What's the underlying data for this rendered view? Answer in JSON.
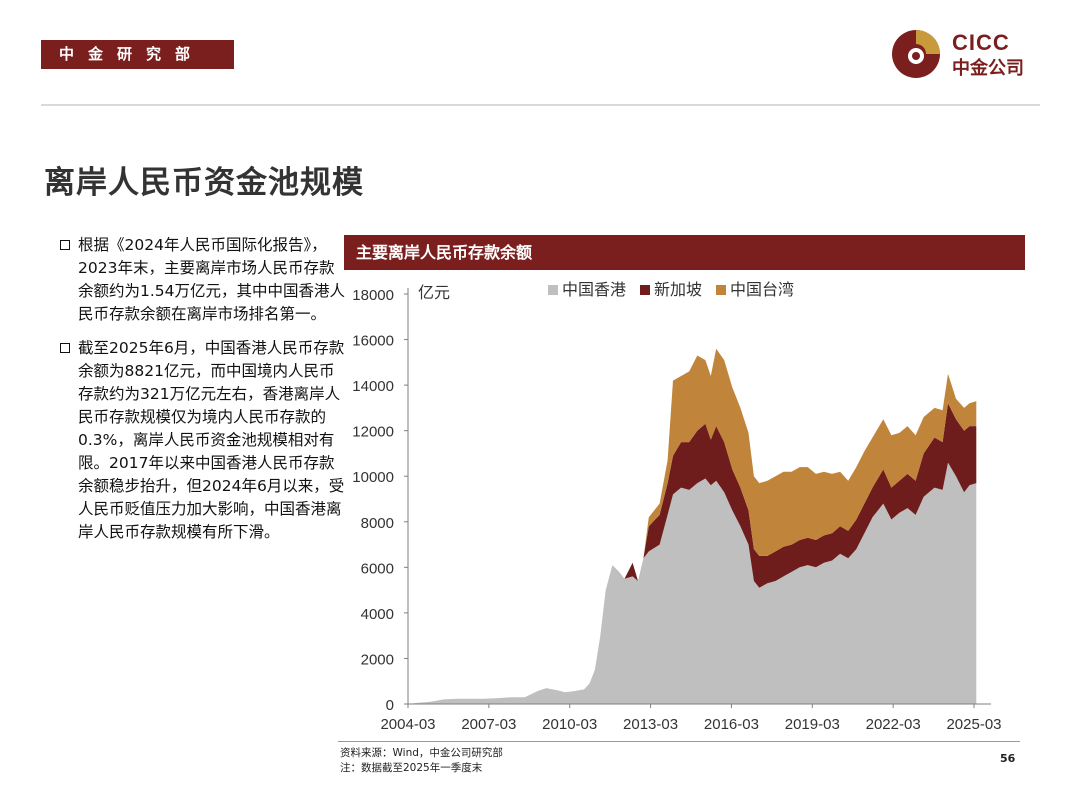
{
  "header": {
    "dept_label": "中金研究部",
    "logo_en": "CICC",
    "logo_cn": "中金公司",
    "brand_color": "#7b1e1e",
    "logo_gold": "#c99a3c"
  },
  "page_title": "离岸人民币资金池规模",
  "bullets": [
    "根据《2024年人民币国际化报告》，2023年末，主要离岸市场人民币存款余额约为1.54万亿元，其中中国香港人民币存款余额在离岸市场排名第一。",
    "截至2025年6月，中国香港人民币存款余额为8821亿元，而中国境内人民币存款约为321万亿元左右，香港离岸人民币存款规模仅为境内人民币存款的0.3%，离岸人民币资金池规模相对有限。2017年以来中国香港人民币存款余额稳步抬升，但2024年6月以来，受人民币贬值压力加大影响，中国香港离岸人民币存款规模有所下滑。"
  ],
  "chart_title": "主要离岸人民币存款余额",
  "footer": {
    "source": "资料来源：Wind，中金公司研究部",
    "note": "注：数据截至2025年一季度末",
    "page_number": "56"
  },
  "chart_data": {
    "type": "area",
    "stacked": true,
    "ylabel": "亿元",
    "ylim": [
      0,
      18000
    ],
    "yticks": [
      0,
      2000,
      4000,
      6000,
      8000,
      10000,
      12000,
      14000,
      16000,
      18000
    ],
    "xlim": [
      2004.167,
      2025.5
    ],
    "xtick_labels": [
      "2004-03",
      "2007-03",
      "2010-03",
      "2013-03",
      "2016-03",
      "2019-03",
      "2022-03",
      "2025-03"
    ],
    "legend_position": "top",
    "colors": [
      "#bfbfbf",
      "#6e1c1c",
      "#c0853a"
    ],
    "series": [
      {
        "name": "中国香港",
        "points": [
          [
            2004.167,
            0
          ],
          [
            2004.5,
            50
          ],
          [
            2005.0,
            100
          ],
          [
            2005.5,
            200
          ],
          [
            2006.0,
            230
          ],
          [
            2006.5,
            230
          ],
          [
            2007.0,
            230
          ],
          [
            2007.5,
            260
          ],
          [
            2008.0,
            300
          ],
          [
            2008.5,
            300
          ],
          [
            2009.0,
            580
          ],
          [
            2009.3,
            700
          ],
          [
            2009.7,
            600
          ],
          [
            2010.0,
            520
          ],
          [
            2010.3,
            560
          ],
          [
            2010.7,
            640
          ],
          [
            2010.9,
            900
          ],
          [
            2011.1,
            1500
          ],
          [
            2011.3,
            3000
          ],
          [
            2011.5,
            5000
          ],
          [
            2011.75,
            6100
          ],
          [
            2012.0,
            5800
          ],
          [
            2012.2,
            5500
          ],
          [
            2012.5,
            5600
          ],
          [
            2012.7,
            5400
          ],
          [
            2012.9,
            6400
          ],
          [
            2013.1,
            6700
          ],
          [
            2013.5,
            7000
          ],
          [
            2013.8,
            8300
          ],
          [
            2014.0,
            9200
          ],
          [
            2014.3,
            9500
          ],
          [
            2014.6,
            9400
          ],
          [
            2014.9,
            9700
          ],
          [
            2015.2,
            9900
          ],
          [
            2015.4,
            9600
          ],
          [
            2015.6,
            9800
          ],
          [
            2015.9,
            9300
          ],
          [
            2016.2,
            8500
          ],
          [
            2016.5,
            7800
          ],
          [
            2016.8,
            7000
          ],
          [
            2017.0,
            5400
          ],
          [
            2017.2,
            5100
          ],
          [
            2017.5,
            5300
          ],
          [
            2017.8,
            5400
          ],
          [
            2018.1,
            5600
          ],
          [
            2018.4,
            5800
          ],
          [
            2018.7,
            6000
          ],
          [
            2019.0,
            6100
          ],
          [
            2019.3,
            6000
          ],
          [
            2019.6,
            6200
          ],
          [
            2019.9,
            6300
          ],
          [
            2020.2,
            6600
          ],
          [
            2020.5,
            6400
          ],
          [
            2020.8,
            6800
          ],
          [
            2021.1,
            7500
          ],
          [
            2021.4,
            8200
          ],
          [
            2021.8,
            8800
          ],
          [
            2022.1,
            8100
          ],
          [
            2022.4,
            8400
          ],
          [
            2022.7,
            8600
          ],
          [
            2023.0,
            8300
          ],
          [
            2023.3,
            9100
          ],
          [
            2023.7,
            9500
          ],
          [
            2024.0,
            9400
          ],
          [
            2024.2,
            10600
          ],
          [
            2024.5,
            10000
          ],
          [
            2024.8,
            9300
          ],
          [
            2025.0,
            9600
          ],
          [
            2025.25,
            9700
          ]
        ]
      },
      {
        "name": "新加坡",
        "points": [
          [
            2004.167,
            0
          ],
          [
            2010.9,
            0
          ],
          [
            2011.1,
            0
          ],
          [
            2011.75,
            0
          ],
          [
            2012.0,
            0
          ],
          [
            2012.2,
            0
          ],
          [
            2012.5,
            600
          ],
          [
            2012.7,
            0
          ],
          [
            2012.9,
            0
          ],
          [
            2013.1,
            1100
          ],
          [
            2013.5,
            1300
          ],
          [
            2013.8,
            1400
          ],
          [
            2014.0,
            1700
          ],
          [
            2014.3,
            2000
          ],
          [
            2014.6,
            2100
          ],
          [
            2014.9,
            2300
          ],
          [
            2015.2,
            2400
          ],
          [
            2015.4,
            2000
          ],
          [
            2015.6,
            2400
          ],
          [
            2015.9,
            2200
          ],
          [
            2016.2,
            1800
          ],
          [
            2016.5,
            1700
          ],
          [
            2016.8,
            1500
          ],
          [
            2017.0,
            1400
          ],
          [
            2017.2,
            1400
          ],
          [
            2017.5,
            1200
          ],
          [
            2017.8,
            1300
          ],
          [
            2018.1,
            1300
          ],
          [
            2018.4,
            1200
          ],
          [
            2018.7,
            1200
          ],
          [
            2019.0,
            1200
          ],
          [
            2019.3,
            1200
          ],
          [
            2019.6,
            1200
          ],
          [
            2019.9,
            1200
          ],
          [
            2020.2,
            1200
          ],
          [
            2020.5,
            1200
          ],
          [
            2020.8,
            1300
          ],
          [
            2021.1,
            1300
          ],
          [
            2021.4,
            1300
          ],
          [
            2021.8,
            1500
          ],
          [
            2022.1,
            1400
          ],
          [
            2022.4,
            1400
          ],
          [
            2022.7,
            1500
          ],
          [
            2023.0,
            1500
          ],
          [
            2023.3,
            1900
          ],
          [
            2023.7,
            2200
          ],
          [
            2024.0,
            2100
          ],
          [
            2024.2,
            2600
          ],
          [
            2024.5,
            2500
          ],
          [
            2024.8,
            2700
          ],
          [
            2025.0,
            2600
          ],
          [
            2025.25,
            2500
          ]
        ]
      },
      {
        "name": "中国台湾",
        "points": [
          [
            2004.167,
            0
          ],
          [
            2012.9,
            0
          ],
          [
            2013.1,
            400
          ],
          [
            2013.5,
            500
          ],
          [
            2013.8,
            1000
          ],
          [
            2014.0,
            3300
          ],
          [
            2014.3,
            2900
          ],
          [
            2014.6,
            3100
          ],
          [
            2014.9,
            3300
          ],
          [
            2015.2,
            2800
          ],
          [
            2015.4,
            2800
          ],
          [
            2015.6,
            3400
          ],
          [
            2015.9,
            3600
          ],
          [
            2016.2,
            3600
          ],
          [
            2016.5,
            3500
          ],
          [
            2016.8,
            3400
          ],
          [
            2017.0,
            3200
          ],
          [
            2017.2,
            3200
          ],
          [
            2017.5,
            3300
          ],
          [
            2017.8,
            3300
          ],
          [
            2018.1,
            3300
          ],
          [
            2018.4,
            3200
          ],
          [
            2018.7,
            3200
          ],
          [
            2019.0,
            3100
          ],
          [
            2019.3,
            2900
          ],
          [
            2019.6,
            2800
          ],
          [
            2019.9,
            2600
          ],
          [
            2020.2,
            2400
          ],
          [
            2020.5,
            2200
          ],
          [
            2020.8,
            2300
          ],
          [
            2021.1,
            2300
          ],
          [
            2021.4,
            2200
          ],
          [
            2021.8,
            2200
          ],
          [
            2022.1,
            2300
          ],
          [
            2022.4,
            2100
          ],
          [
            2022.7,
            2100
          ],
          [
            2023.0,
            2000
          ],
          [
            2023.3,
            1600
          ],
          [
            2023.7,
            1300
          ],
          [
            2024.0,
            1400
          ],
          [
            2024.2,
            1300
          ],
          [
            2024.5,
            900
          ],
          [
            2024.8,
            1000
          ],
          [
            2025.0,
            1000
          ],
          [
            2025.25,
            1100
          ]
        ]
      }
    ]
  }
}
